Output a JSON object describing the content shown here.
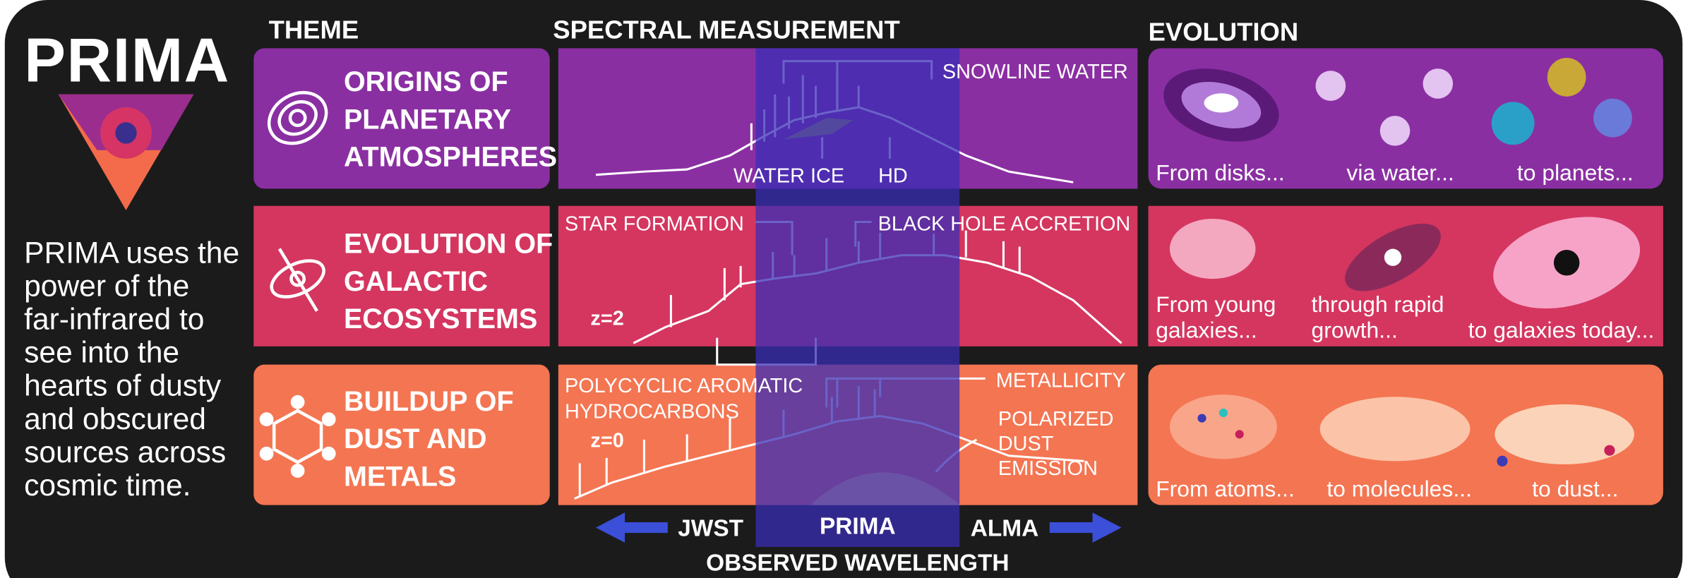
{
  "logo": "PRIMA",
  "intro": [
    "PRIMA uses the",
    "power of the",
    "far-infrared to",
    "see into the",
    "hearts of dusty",
    "and obscured",
    "sources across",
    "cosmic time."
  ],
  "columns": [
    "THEME",
    "SPECTRAL MEASUREMENT",
    "EVOLUTION"
  ],
  "rows": [
    {
      "theme": [
        "ORIGINS OF",
        "PLANETARY",
        "ATMOSPHERES"
      ],
      "spectrum": {
        "labels": [
          "SNOWLINE WATER",
          "WATER ICE",
          "HD"
        ]
      },
      "evolution": [
        [
          "From disks..."
        ],
        [
          "via water..."
        ],
        [
          "to planets..."
        ]
      ]
    },
    {
      "theme": [
        "EVOLUTION OF",
        "GALACTIC",
        "ECOSYSTEMS"
      ],
      "spectrum": {
        "labels": [
          "STAR FORMATION",
          "BLACK HOLE ACCRETION",
          "z=2"
        ]
      },
      "evolution": [
        [
          "From young",
          "galaxies..."
        ],
        [
          "through rapid",
          "growth..."
        ],
        [
          "to galaxies today..."
        ]
      ]
    },
    {
      "theme": [
        "BUILDUP OF",
        "DUST AND",
        "METALS"
      ],
      "spectrum": {
        "labels": [
          "POLYCYCLIC AROMATIC",
          "HYDROCARBONS",
          "METALLICITY",
          "POLARIZED",
          "DUST",
          "EMISSION",
          "z=0"
        ]
      },
      "evolution": [
        [
          "From atoms..."
        ],
        [
          "to molecules..."
        ],
        [
          "to dust..."
        ]
      ]
    }
  ],
  "axis": {
    "left": "JWST",
    "center": "PRIMA",
    "right": "ALMA",
    "title": "OBSERVED WAVELENGTH"
  }
}
